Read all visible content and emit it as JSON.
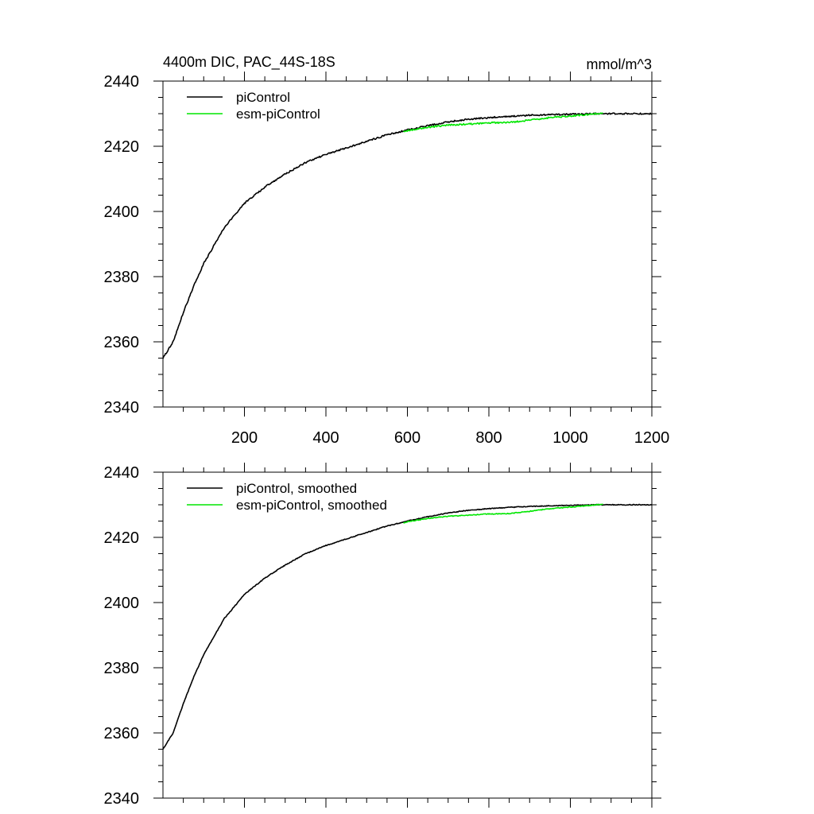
{
  "chart_data": [
    {
      "type": "line",
      "title_left": "4400m DIC, PAC_44S-18S",
      "title_right": "mmol/m^3",
      "xlim": [
        0,
        1200
      ],
      "ylim": [
        2340,
        2440
      ],
      "x_ticks": [
        200,
        400,
        600,
        800,
        1000,
        1200
      ],
      "x_tick_labels": [
        "200",
        "400",
        "600",
        "800",
        "1000",
        "1200"
      ],
      "y_ticks": [
        2340,
        2360,
        2380,
        2400,
        2420,
        2440
      ],
      "y_tick_labels": [
        "2340",
        "2360",
        "2380",
        "2400",
        "2420",
        "2440"
      ],
      "legend_position": "top-left",
      "series": [
        {
          "name": "piControl",
          "color": "#000000",
          "x": [
            0,
            25,
            50,
            75,
            100,
            150,
            200,
            250,
            300,
            350,
            400,
            450,
            500,
            550,
            600,
            650,
            700,
            750,
            800,
            850,
            900,
            950,
            1000,
            1050,
            1100,
            1150,
            1200
          ],
          "y": [
            2355,
            2360,
            2369,
            2377,
            2384,
            2395,
            2402.5,
            2407.5,
            2411.5,
            2415,
            2417.5,
            2419.5,
            2421.5,
            2423.5,
            2425,
            2426.3,
            2427.5,
            2428.3,
            2428.8,
            2429.2,
            2429.5,
            2429.7,
            2429.8,
            2430,
            2430,
            2430,
            2430
          ]
        },
        {
          "name": "esm-piControl",
          "color": "#00e600",
          "x": [
            590,
            600,
            650,
            700,
            750,
            800,
            850,
            900,
            950,
            1000,
            1050,
            1080
          ],
          "y": [
            2424.5,
            2424.8,
            2425.8,
            2426.5,
            2426.8,
            2427.2,
            2427.3,
            2428,
            2428.8,
            2429.3,
            2429.8,
            2430.2
          ]
        }
      ]
    },
    {
      "type": "line",
      "xlim": [
        0,
        1200
      ],
      "ylim": [
        2340,
        2440
      ],
      "y_ticks": [
        2340,
        2360,
        2380,
        2400,
        2420,
        2440
      ],
      "y_tick_labels": [
        "2340",
        "2360",
        "2380",
        "2400",
        "2420",
        "2440"
      ],
      "legend_position": "top-left",
      "series": [
        {
          "name": "piControl, smoothed",
          "color": "#000000",
          "x": [
            0,
            25,
            50,
            75,
            100,
            150,
            200,
            250,
            300,
            350,
            400,
            450,
            500,
            550,
            600,
            650,
            700,
            750,
            800,
            850,
            900,
            950,
            1000,
            1050,
            1100,
            1150,
            1200
          ],
          "y": [
            2355,
            2360,
            2369,
            2377,
            2384,
            2395,
            2402.5,
            2407.5,
            2411.5,
            2415,
            2417.5,
            2419.5,
            2421.5,
            2423.5,
            2425,
            2426.3,
            2427.5,
            2428.3,
            2428.8,
            2429.2,
            2429.5,
            2429.7,
            2429.8,
            2430,
            2430,
            2430,
            2430
          ]
        },
        {
          "name": "esm-piControl, smoothed",
          "color": "#00e600",
          "x": [
            590,
            600,
            650,
            700,
            750,
            800,
            850,
            900,
            950,
            1000,
            1050,
            1080
          ],
          "y": [
            2424.5,
            2424.8,
            2425.8,
            2426.5,
            2426.8,
            2427.2,
            2427.3,
            2428,
            2428.8,
            2429.3,
            2429.8,
            2430.2
          ]
        }
      ]
    }
  ]
}
